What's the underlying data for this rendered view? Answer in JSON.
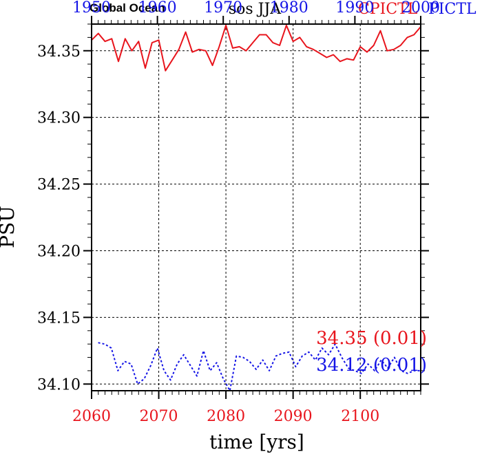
{
  "header": {
    "left": "Global Ocean",
    "center": "sos JJA",
    "right_red": "CPICTL",
    "right_blue": "PICTL"
  },
  "colors": {
    "red": "#e8141c",
    "blue": "#1414e6",
    "black": "#000000",
    "grid": "#000000"
  },
  "chart_data": {
    "type": "line",
    "title": "sos JJA",
    "xlabel": "time [yrs]",
    "ylabel": "PSU",
    "xlim": [
      2060,
      2109
    ],
    "top_xlim": [
      1950,
      2000
    ],
    "ylim": [
      34.095,
      34.37
    ],
    "yticks": [
      34.1,
      34.15,
      34.2,
      34.25,
      34.3,
      34.35
    ],
    "ytick_labels": [
      "34.10",
      "34.15",
      "34.20",
      "34.25",
      "34.30",
      "34.35"
    ],
    "xticks": [
      2060,
      2070,
      2080,
      2090,
      2100
    ],
    "xtick_labels": [
      "2060",
      "2070",
      "2080",
      "2090",
      "2100"
    ],
    "top_xticks": [
      1950,
      1960,
      1970,
      1980,
      1990,
      2000
    ],
    "top_xtick_labels": [
      "1950",
      "1960",
      "1970",
      "1980",
      "1990",
      "2000"
    ],
    "grid": true,
    "series": [
      {
        "name": "CPICTL",
        "color": "#e8141c",
        "style": "solid",
        "axis": "bottom",
        "x": [
          2060,
          2061,
          2062,
          2063,
          2064,
          2065,
          2066,
          2067,
          2068,
          2069,
          2070,
          2071,
          2072,
          2073,
          2074,
          2075,
          2076,
          2077,
          2078,
          2079,
          2080,
          2081,
          2082,
          2083,
          2084,
          2085,
          2086,
          2087,
          2088,
          2089,
          2090,
          2091,
          2092,
          2093,
          2094,
          2095,
          2096,
          2097,
          2098,
          2099,
          2100,
          2101,
          2102,
          2103,
          2104,
          2105,
          2106,
          2107,
          2108,
          2109
        ],
        "values": [
          34.358,
          34.363,
          34.357,
          34.359,
          34.342,
          34.359,
          34.35,
          34.357,
          34.337,
          34.356,
          34.358,
          34.335,
          34.343,
          34.351,
          34.364,
          34.349,
          34.351,
          34.35,
          34.339,
          34.353,
          34.369,
          34.352,
          34.353,
          34.35,
          34.356,
          34.362,
          34.362,
          34.356,
          34.354,
          34.369,
          34.357,
          34.36,
          34.353,
          34.351,
          34.348,
          34.345,
          34.347,
          34.342,
          34.344,
          34.343,
          34.353,
          34.349,
          34.354,
          34.365,
          34.35,
          34.351,
          34.354,
          34.36,
          34.362,
          34.368
        ]
      },
      {
        "name": "PICTL",
        "color": "#1414e6",
        "style": "dashed",
        "axis": "top",
        "x": [
          1951,
          1952,
          1953,
          1954,
          1955,
          1956,
          1957,
          1958,
          1959,
          1960,
          1961,
          1962,
          1963,
          1964,
          1965,
          1966,
          1967,
          1968,
          1969,
          1970,
          1971,
          1972,
          1973,
          1974,
          1975,
          1976,
          1977,
          1978,
          1979,
          1980,
          1981,
          1982,
          1983,
          1984,
          1985,
          1986,
          1987,
          1988,
          1989,
          1990,
          1991,
          1992,
          1993,
          1994,
          1995,
          1996,
          1997,
          1998,
          1999,
          2000
        ],
        "values": [
          34.131,
          34.13,
          34.127,
          34.11,
          34.117,
          34.115,
          34.1,
          34.104,
          34.114,
          34.127,
          34.11,
          34.103,
          34.115,
          34.122,
          34.114,
          34.106,
          34.125,
          34.11,
          34.116,
          34.104,
          34.095,
          34.121,
          34.12,
          34.117,
          34.111,
          34.118,
          34.11,
          34.121,
          34.123,
          34.124,
          34.113,
          34.121,
          34.124,
          34.118,
          34.127,
          34.122,
          34.13,
          34.12,
          34.112,
          34.11,
          34.108,
          34.115,
          34.11,
          34.118,
          34.112,
          34.12,
          34.11,
          34.108,
          34.11,
          34.11
        ]
      }
    ],
    "annotations": [
      {
        "text": "34.35  (0.01)",
        "color": "#e8141c"
      },
      {
        "text": "34.12  (0.01)",
        "color": "#1414e6"
      }
    ]
  }
}
